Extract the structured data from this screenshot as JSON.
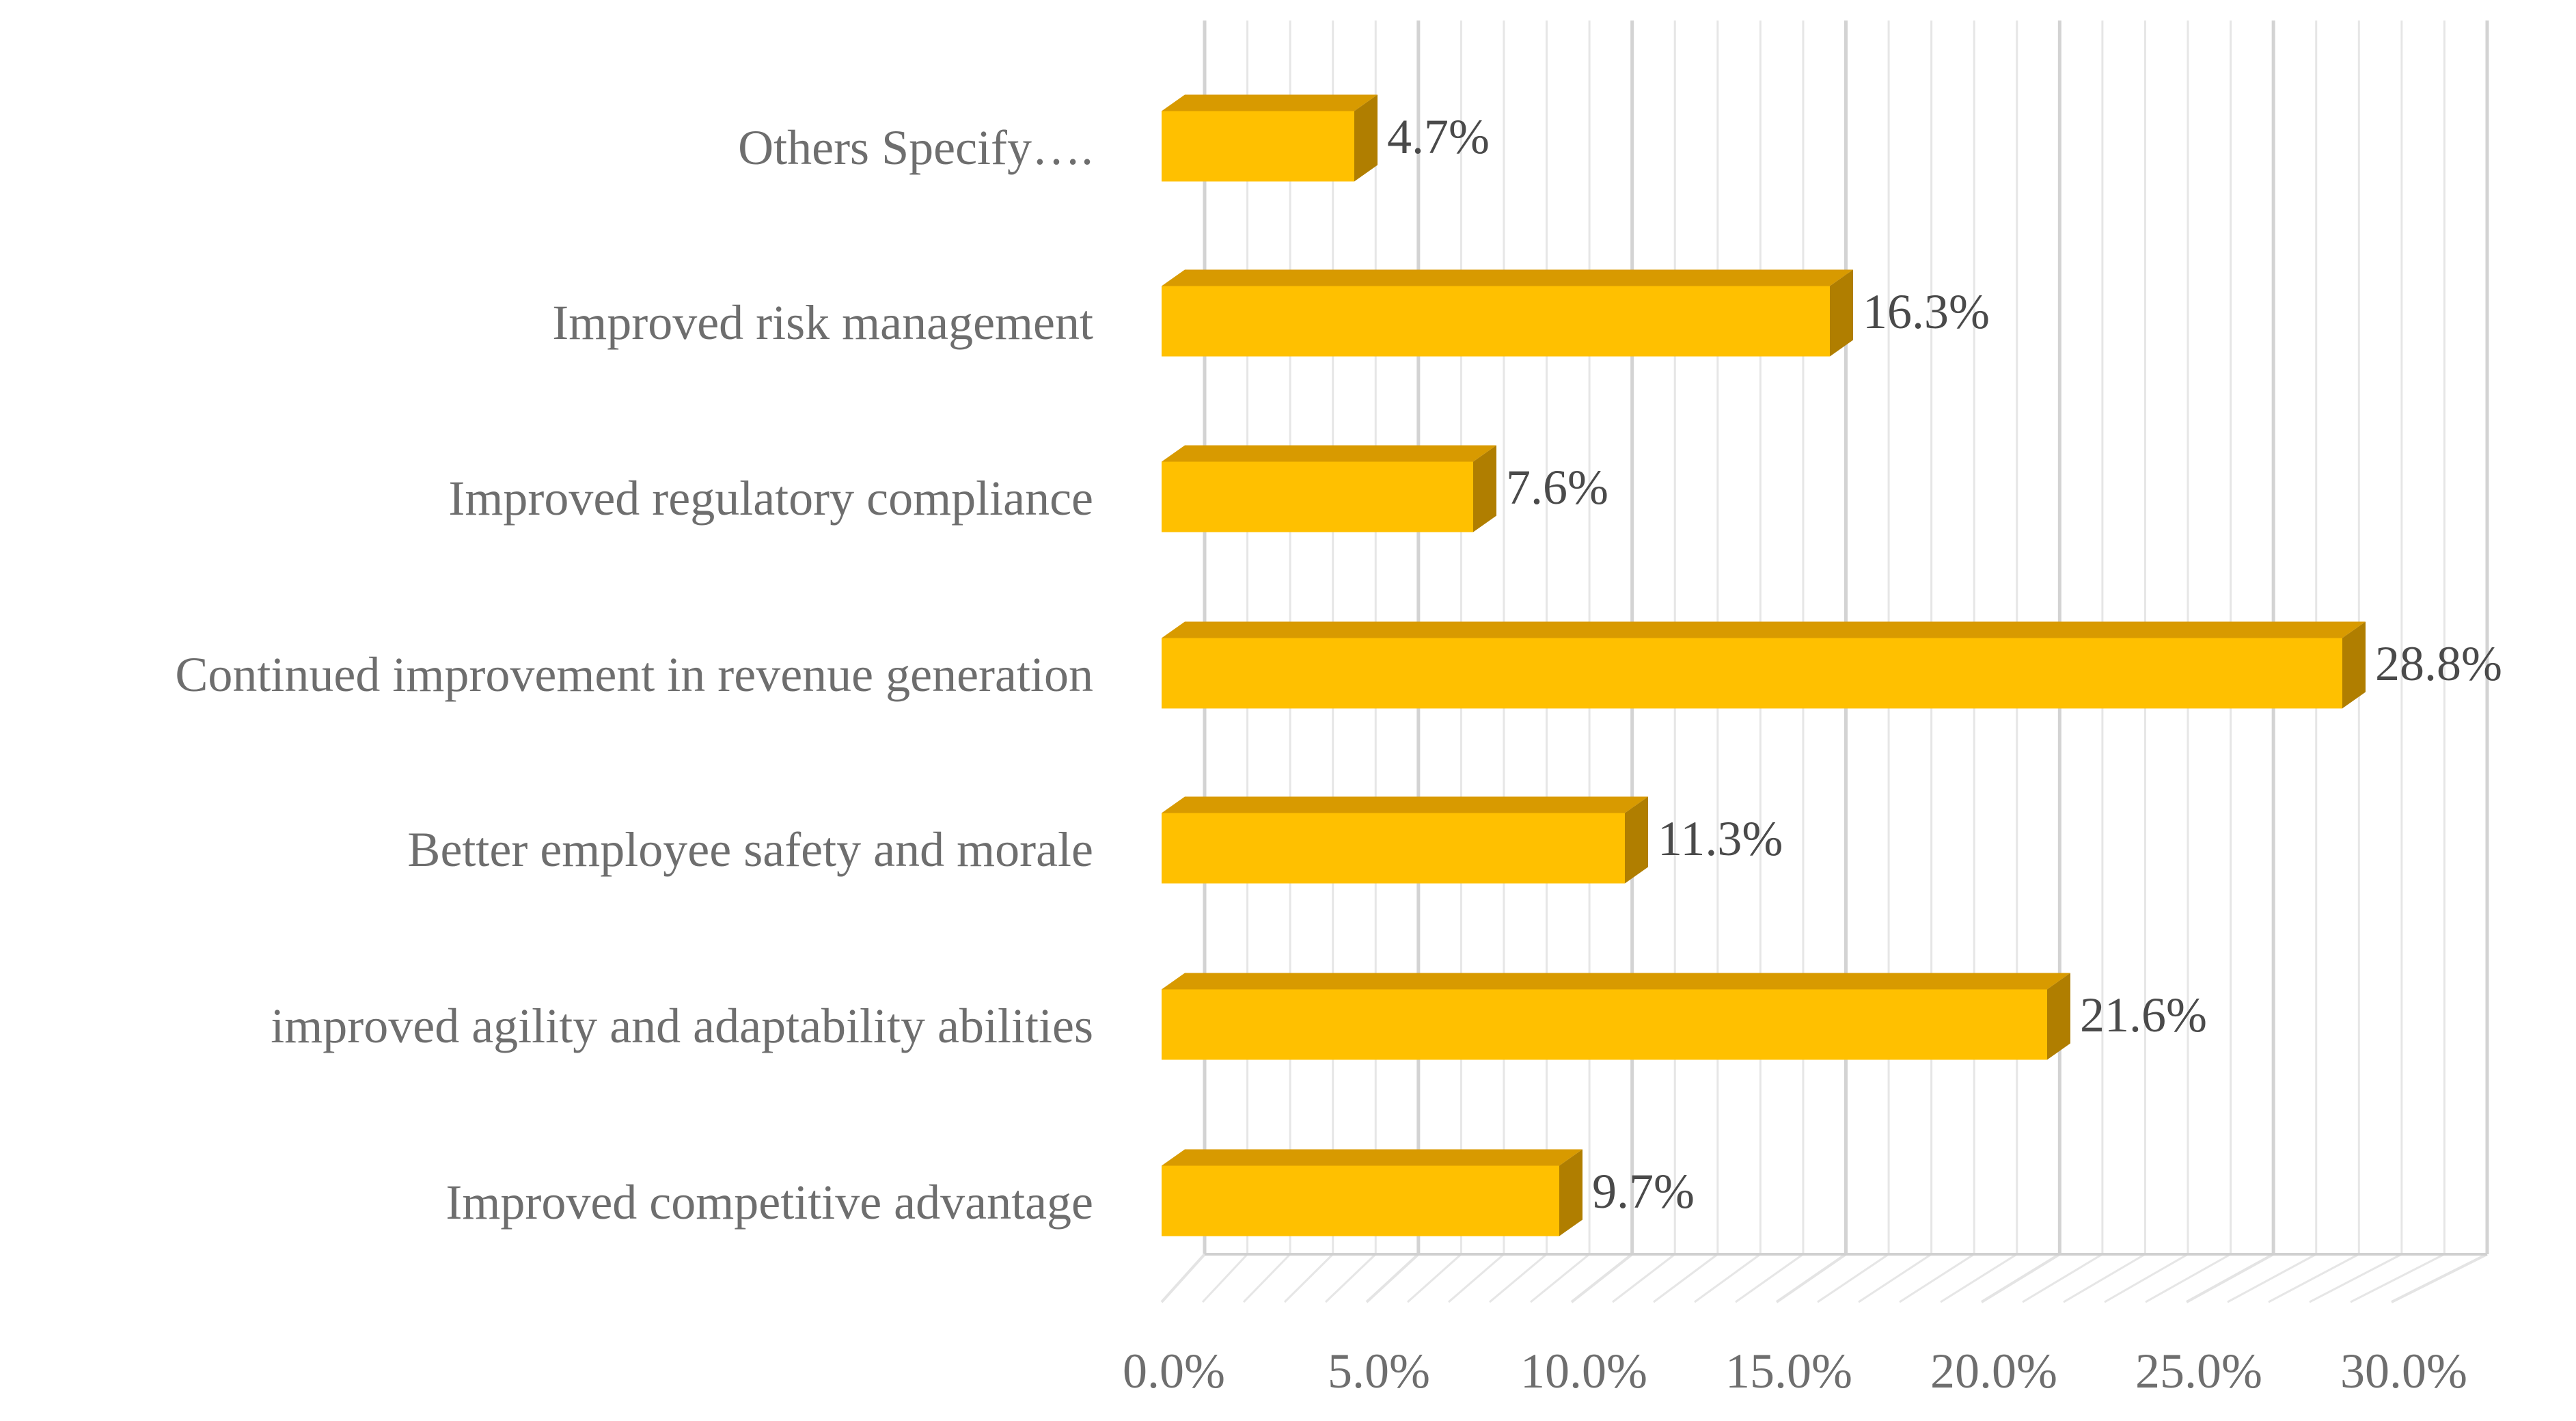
{
  "chart_data": {
    "type": "bar",
    "orientation": "horizontal",
    "style": "3d",
    "categories": [
      "Others Specify….",
      "Improved risk management",
      "Improved regulatory compliance",
      "Continued improvement in revenue generation",
      "Better employee safety and morale",
      "improved agility and adaptability abilities",
      "Improved competitive advantage"
    ],
    "values": [
      4.7,
      16.3,
      7.6,
      28.8,
      11.3,
      21.6,
      9.7
    ],
    "data_labels": [
      "4.7%",
      "16.3%",
      "7.6%",
      "28.8%",
      "11.3%",
      "21.6%",
      "9.7%"
    ],
    "xlim": [
      0,
      30
    ],
    "xticks": [
      0,
      5,
      10,
      15,
      20,
      25,
      30
    ],
    "xtick_labels": [
      "0.0%",
      "5.0%",
      "10.0%",
      "15.0%",
      "20.0%",
      "25.0%",
      "30.0%"
    ],
    "title": "",
    "xlabel": "",
    "ylabel": "",
    "grid": true,
    "legend": "none",
    "colors": {
      "bar_front": "#ffc000",
      "bar_top": "#d89a00",
      "bar_side": "#b07e00",
      "text": "#6e6e6e",
      "data_label": "#4a4a4a"
    }
  }
}
